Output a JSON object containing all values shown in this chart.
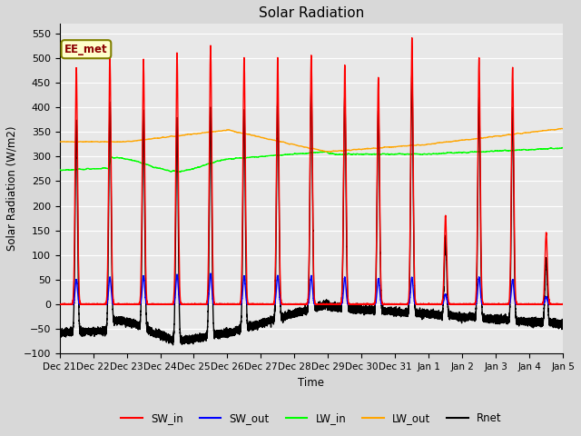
{
  "title": "Solar Radiation",
  "ylabel": "Solar Radiation (W/m2)",
  "xlabel": "Time",
  "ylim": [
    -100,
    570
  ],
  "yticks": [
    -100,
    -50,
    0,
    50,
    100,
    150,
    200,
    250,
    300,
    350,
    400,
    450,
    500,
    550
  ],
  "fig_bg_color": "#d8d8d8",
  "plot_bg_color": "#e8e8e8",
  "grid_color": "white",
  "watermark": "EE_met",
  "legend_entries": [
    "SW_in",
    "SW_out",
    "LW_in",
    "LW_out",
    "Rnet"
  ],
  "legend_colors": [
    "red",
    "blue",
    "#00ff00",
    "orange",
    "black"
  ],
  "num_days": 15,
  "x_labels": [
    "Dec 21",
    "Dec 22",
    "Dec 23",
    "Dec 24",
    "Dec 25",
    "Dec 26",
    "Dec 27",
    "Dec 28",
    "Dec 29",
    "Dec 30",
    "Dec 31",
    "Jan 1",
    "Jan 2",
    "Jan 3",
    "Jan 4",
    "Jan 5"
  ],
  "SW_in_peaks": [
    480,
    505,
    497,
    510,
    525,
    500,
    500,
    505,
    485,
    460,
    540,
    180,
    500,
    480,
    145,
    0
  ],
  "SW_out_peaks": [
    50,
    55,
    58,
    60,
    62,
    58,
    58,
    58,
    55,
    52,
    55,
    20,
    55,
    50,
    15,
    0
  ],
  "LW_in_base": 310,
  "LW_out_base": 335,
  "line_width": 1.0
}
